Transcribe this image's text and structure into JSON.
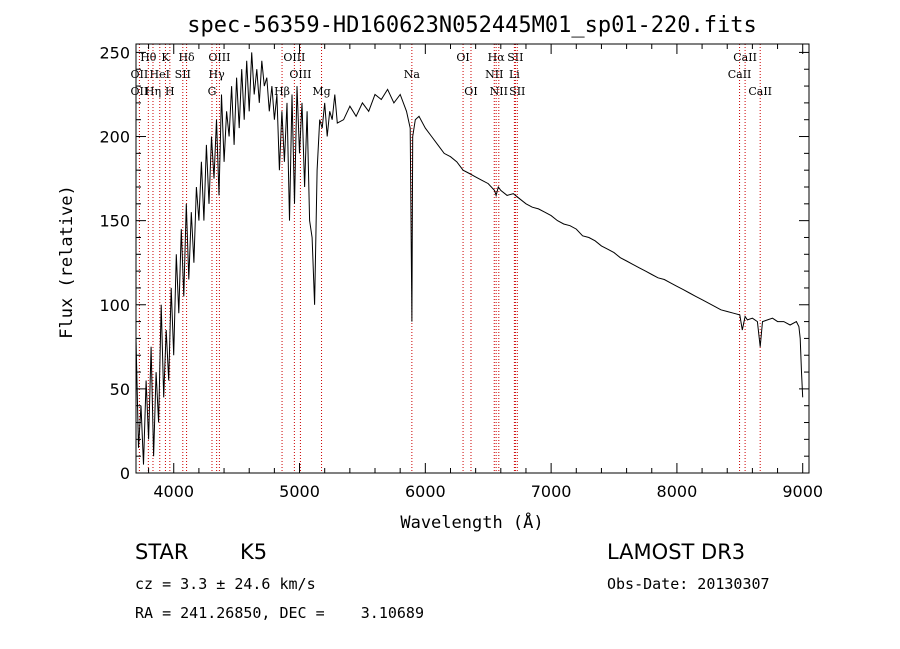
{
  "chart_data": {
    "type": "line",
    "title": "spec-56359-HD160623N052445M01_sp01-220.fits",
    "xlabel": "Wavelength (Å)",
    "ylabel": "Flux (relative)",
    "xlim": [
      3700,
      9050
    ],
    "ylim": [
      0,
      255
    ],
    "xticks": [
      4000,
      5000,
      6000,
      7000,
      8000,
      9000
    ],
    "yticks": [
      0,
      50,
      100,
      150,
      200,
      250
    ],
    "series": [
      {
        "name": "flux",
        "x": [
          3700,
          3720,
          3740,
          3760,
          3780,
          3800,
          3820,
          3840,
          3860,
          3880,
          3900,
          3920,
          3940,
          3960,
          3980,
          4000,
          4020,
          4040,
          4060,
          4080,
          4100,
          4120,
          4140,
          4160,
          4180,
          4200,
          4220,
          4240,
          4260,
          4280,
          4300,
          4320,
          4340,
          4360,
          4380,
          4400,
          4420,
          4440,
          4460,
          4480,
          4500,
          4520,
          4540,
          4560,
          4580,
          4600,
          4620,
          4640,
          4660,
          4680,
          4700,
          4720,
          4740,
          4760,
          4780,
          4800,
          4820,
          4840,
          4860,
          4880,
          4900,
          4920,
          4940,
          4960,
          4980,
          5000,
          5020,
          5040,
          5060,
          5080,
          5100,
          5120,
          5140,
          5160,
          5180,
          5200,
          5220,
          5240,
          5260,
          5280,
          5300,
          5350,
          5400,
          5450,
          5500,
          5550,
          5600,
          5650,
          5700,
          5750,
          5800,
          5850,
          5880,
          5893,
          5900,
          5920,
          5950,
          6000,
          6050,
          6100,
          6150,
          6200,
          6250,
          6300,
          6350,
          6400,
          6450,
          6500,
          6550,
          6563,
          6580,
          6600,
          6650,
          6700,
          6750,
          6800,
          6850,
          6900,
          6950,
          7000,
          7050,
          7100,
          7150,
          7200,
          7250,
          7300,
          7350,
          7400,
          7450,
          7500,
          7550,
          7600,
          7650,
          7700,
          7750,
          7800,
          7850,
          7900,
          7950,
          8000,
          8050,
          8100,
          8150,
          8200,
          8250,
          8300,
          8350,
          8400,
          8450,
          8500,
          8520,
          8542,
          8560,
          8600,
          8640,
          8662,
          8680,
          8720,
          8760,
          8800,
          8850,
          8900,
          8950,
          8970,
          8980,
          8990,
          9000
        ],
        "y": [
          80,
          15,
          40,
          5,
          55,
          20,
          75,
          10,
          60,
          30,
          100,
          45,
          85,
          55,
          110,
          70,
          130,
          95,
          145,
          105,
          160,
          115,
          155,
          125,
          170,
          150,
          185,
          150,
          195,
          160,
          200,
          175,
          210,
          165,
          225,
          185,
          215,
          200,
          230,
          195,
          235,
          205,
          240,
          210,
          245,
          215,
          250,
          225,
          240,
          220,
          245,
          230,
          235,
          215,
          230,
          210,
          225,
          180,
          215,
          185,
          220,
          150,
          225,
          160,
          230,
          190,
          220,
          170,
          215,
          150,
          140,
          100,
          180,
          210,
          205,
          220,
          200,
          215,
          210,
          225,
          208,
          210,
          218,
          212,
          220,
          215,
          225,
          222,
          228,
          220,
          225,
          215,
          205,
          90,
          200,
          210,
          212,
          205,
          200,
          195,
          190,
          188,
          185,
          180,
          178,
          176,
          174,
          172,
          168,
          165,
          170,
          168,
          165,
          166,
          163,
          160,
          158,
          157,
          155,
          153,
          150,
          148,
          147,
          145,
          141,
          140,
          138,
          135,
          133,
          131,
          128,
          126,
          124,
          122,
          120,
          118,
          116,
          115,
          113,
          111,
          109,
          107,
          105,
          103,
          101,
          99,
          97,
          96,
          95,
          94,
          85,
          93,
          91,
          92,
          90,
          75,
          90,
          91,
          92,
          90,
          90,
          88,
          90,
          87,
          80,
          60,
          45
        ]
      }
    ],
    "line_markers": [
      {
        "label": "Hθ",
        "wl": 3798,
        "row": 1
      },
      {
        "label": "OII",
        "wl": 3727,
        "row": 2
      },
      {
        "label": "OII",
        "wl": 3727,
        "row": 3
      },
      {
        "label": "K",
        "wl": 3934,
        "row": 1
      },
      {
        "label": "HeI",
        "wl": 3889,
        "row": 2
      },
      {
        "label": "Hη",
        "wl": 3835,
        "row": 3
      },
      {
        "label": "Hδ",
        "wl": 4102,
        "row": 1
      },
      {
        "label": "SII",
        "wl": 4072,
        "row": 2
      },
      {
        "label": "H",
        "wl": 3969,
        "row": 3
      },
      {
        "label": "OIII",
        "wl": 4363,
        "row": 1
      },
      {
        "label": "Hγ",
        "wl": 4341,
        "row": 2
      },
      {
        "label": "G",
        "wl": 4304,
        "row": 3
      },
      {
        "label": "OIII",
        "wl": 4959,
        "row": 1
      },
      {
        "label": "OIII",
        "wl": 5007,
        "row": 2
      },
      {
        "label": "Hβ",
        "wl": 4861,
        "row": 3
      },
      {
        "label": "Mg",
        "wl": 5175,
        "row": 3
      },
      {
        "label": "Na",
        "wl": 5893,
        "row": 2
      },
      {
        "label": "OI",
        "wl": 6300,
        "row": 1
      },
      {
        "label": "OI",
        "wl": 6363,
        "row": 3
      },
      {
        "label": "Hα",
        "wl": 6563,
        "row": 1
      },
      {
        "label": "SII",
        "wl": 6716,
        "row": 1
      },
      {
        "label": "NII",
        "wl": 6548,
        "row": 2
      },
      {
        "label": "Li",
        "wl": 6708,
        "row": 2
      },
      {
        "label": "NII",
        "wl": 6584,
        "row": 3
      },
      {
        "label": "SII",
        "wl": 6731,
        "row": 3
      },
      {
        "label": "CaII",
        "wl": 8542,
        "row": 1
      },
      {
        "label": "CaII",
        "wl": 8498,
        "row": 2
      },
      {
        "label": "CaII",
        "wl": 8662,
        "row": 3
      }
    ],
    "colors": {
      "line": "#000000",
      "marker": "#cc0000",
      "axes": "#000000"
    }
  },
  "info": {
    "class": "STAR",
    "subclass": "K5",
    "survey": "LAMOST DR3",
    "cz": "cz = 3.3 ± 24.6 km/s",
    "obs_date": "Obs-Date: 20130307",
    "coords": "RA = 241.26850, DEC =    3.10689"
  }
}
